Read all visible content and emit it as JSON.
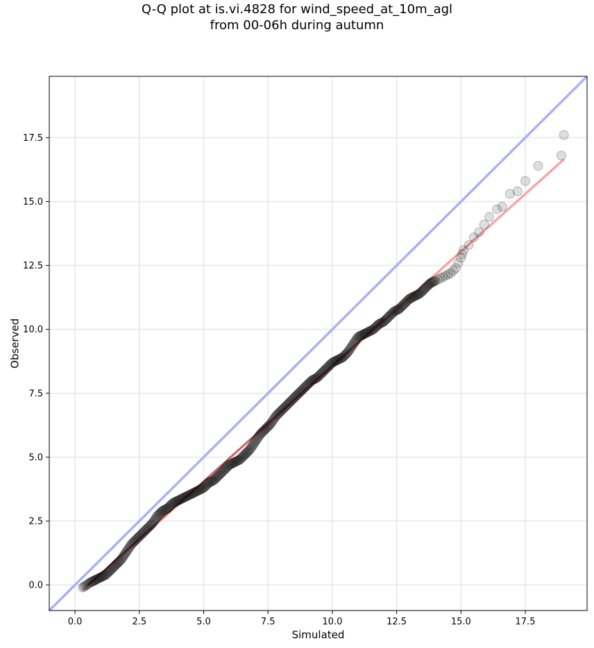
{
  "chart_data": {
    "type": "scatter",
    "title": "Q-Q plot at is.vi.4828 for wind_speed_at_10m_agl\nfrom 00-06h during autumn",
    "xlabel": "Simulated",
    "ylabel": "Observed",
    "xlim": [
      -1.0,
      19.9
    ],
    "ylim": [
      -1.0,
      19.9
    ],
    "xticks": [
      "0.0",
      "2.5",
      "5.0",
      "7.5",
      "10.0",
      "12.5",
      "15.0",
      "17.5"
    ],
    "yticks": [
      "0.0",
      "2.5",
      "5.0",
      "7.5",
      "10.0",
      "12.5",
      "15.0",
      "17.5"
    ],
    "grid": true,
    "colors": {
      "points": "#000000",
      "identity_line": "#aab0f5",
      "fit_line": "#f5a6a6",
      "body_line": "#8b0000"
    },
    "series": [
      {
        "points": [
          [
            0.3,
            -0.1
          ],
          [
            0.6,
            0.1
          ],
          [
            0.8,
            0.2
          ],
          [
            1.0,
            0.3
          ],
          [
            1.2,
            0.4
          ],
          [
            1.4,
            0.6
          ],
          [
            1.6,
            0.8
          ],
          [
            1.8,
            1.0
          ],
          [
            2.0,
            1.3
          ],
          [
            2.2,
            1.6
          ],
          [
            2.4,
            1.8
          ],
          [
            2.6,
            2.0
          ],
          [
            2.8,
            2.2
          ],
          [
            3.0,
            2.4
          ],
          [
            3.2,
            2.7
          ],
          [
            3.4,
            2.9
          ],
          [
            3.6,
            3.0
          ],
          [
            3.8,
            3.2
          ],
          [
            4.0,
            3.3
          ],
          [
            4.2,
            3.4
          ],
          [
            4.4,
            3.5
          ],
          [
            4.6,
            3.6
          ],
          [
            4.8,
            3.7
          ],
          [
            5.0,
            3.8
          ],
          [
            5.2,
            4.0
          ],
          [
            5.4,
            4.1
          ],
          [
            5.6,
            4.3
          ],
          [
            5.8,
            4.5
          ],
          [
            6.0,
            4.7
          ],
          [
            6.2,
            4.8
          ],
          [
            6.4,
            4.9
          ],
          [
            6.6,
            5.1
          ],
          [
            6.8,
            5.3
          ],
          [
            7.0,
            5.6
          ],
          [
            7.2,
            5.9
          ],
          [
            7.4,
            6.1
          ],
          [
            7.6,
            6.3
          ],
          [
            7.8,
            6.6
          ],
          [
            8.0,
            6.8
          ],
          [
            8.2,
            7.0
          ],
          [
            8.4,
            7.2
          ],
          [
            8.6,
            7.4
          ],
          [
            8.8,
            7.6
          ],
          [
            9.0,
            7.8
          ],
          [
            9.2,
            8.0
          ],
          [
            9.4,
            8.1
          ],
          [
            9.6,
            8.3
          ],
          [
            9.8,
            8.5
          ],
          [
            10.0,
            8.7
          ],
          [
            10.2,
            8.8
          ],
          [
            10.4,
            8.9
          ],
          [
            10.6,
            9.1
          ],
          [
            10.8,
            9.4
          ],
          [
            11.0,
            9.7
          ],
          [
            11.2,
            9.8
          ],
          [
            11.4,
            9.9
          ],
          [
            11.6,
            10.0
          ],
          [
            11.8,
            10.2
          ],
          [
            12.0,
            10.3
          ],
          [
            12.2,
            10.5
          ],
          [
            12.4,
            10.7
          ],
          [
            12.6,
            10.8
          ],
          [
            12.8,
            11.0
          ],
          [
            13.0,
            11.2
          ],
          [
            13.2,
            11.3
          ],
          [
            13.4,
            11.4
          ],
          [
            13.6,
            11.6
          ],
          [
            13.8,
            11.8
          ],
          [
            14.0,
            11.9
          ],
          [
            14.2,
            12.0
          ],
          [
            14.4,
            12.1
          ],
          [
            14.6,
            12.2
          ],
          [
            14.8,
            12.4
          ],
          [
            15.0,
            12.8
          ],
          [
            15.1,
            13.1
          ],
          [
            15.3,
            13.3
          ],
          [
            15.5,
            13.6
          ],
          [
            15.7,
            13.8
          ],
          [
            15.9,
            14.1
          ],
          [
            16.1,
            14.4
          ],
          [
            16.4,
            14.7
          ],
          [
            16.6,
            14.8
          ],
          [
            16.9,
            15.3
          ],
          [
            17.2,
            15.4
          ],
          [
            17.5,
            15.8
          ],
          [
            18.0,
            16.4
          ],
          [
            18.9,
            16.8
          ],
          [
            19.0,
            17.6
          ]
        ]
      }
    ],
    "identity_line": {
      "x": [
        -1.0,
        19.9
      ],
      "y": [
        -1.0,
        19.9
      ]
    },
    "fit_line": {
      "x": [
        0.3,
        19.0
      ],
      "y": [
        -0.2,
        16.65
      ]
    },
    "body_line": {
      "x": [
        0.5,
        12.0
      ],
      "y": [
        0.0,
        10.4
      ]
    }
  }
}
